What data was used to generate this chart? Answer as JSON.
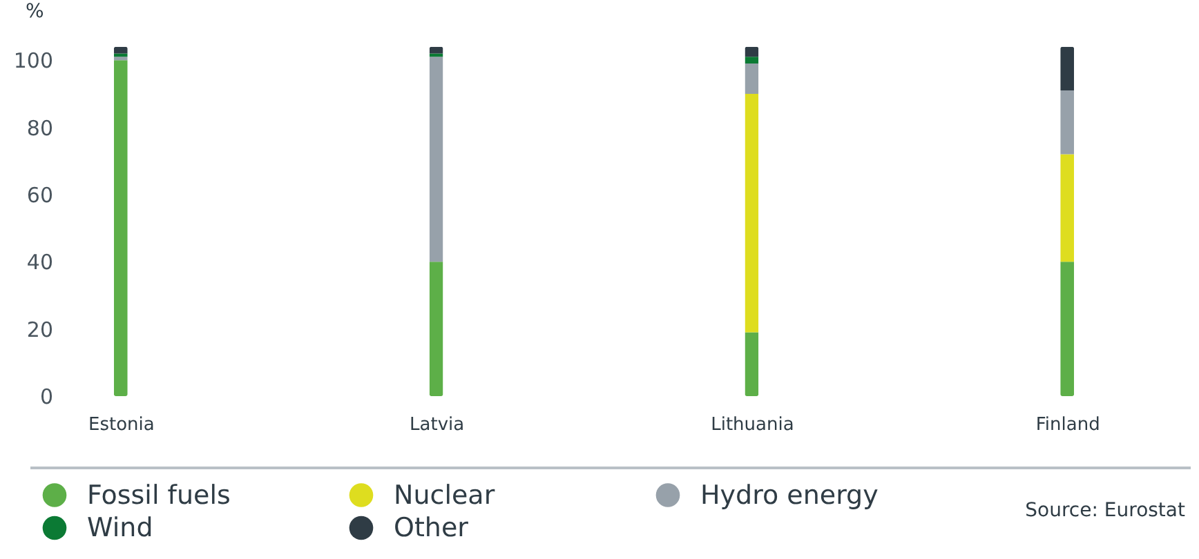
{
  "chart_data": {
    "type": "bar",
    "stacked": true,
    "ylabel": "%",
    "categories": [
      "Estonia",
      "Latvia",
      "Lithuania",
      "Finland"
    ],
    "series": [
      {
        "name": "Fossil fuels",
        "color": "#5daf48",
        "values": [
          100,
          40,
          19,
          40
        ]
      },
      {
        "name": "Nuclear",
        "color": "#dedd1f",
        "values": [
          0,
          0,
          71,
          32
        ]
      },
      {
        "name": "Hydro energy",
        "color": "#97a1aa",
        "values": [
          1,
          61,
          9,
          19
        ]
      },
      {
        "name": "Wind",
        "color": "#0b7a34",
        "values": [
          1,
          1,
          2,
          0
        ]
      },
      {
        "name": "Other",
        "color": "#2f3c45",
        "values": [
          2,
          2,
          3,
          13
        ]
      }
    ],
    "ylim": [
      0,
      106
    ],
    "yticks": [
      0,
      20,
      40,
      60,
      80,
      100
    ],
    "grid": false,
    "legend": "bottom",
    "annotations": [
      "Source: Eurostat"
    ]
  }
}
